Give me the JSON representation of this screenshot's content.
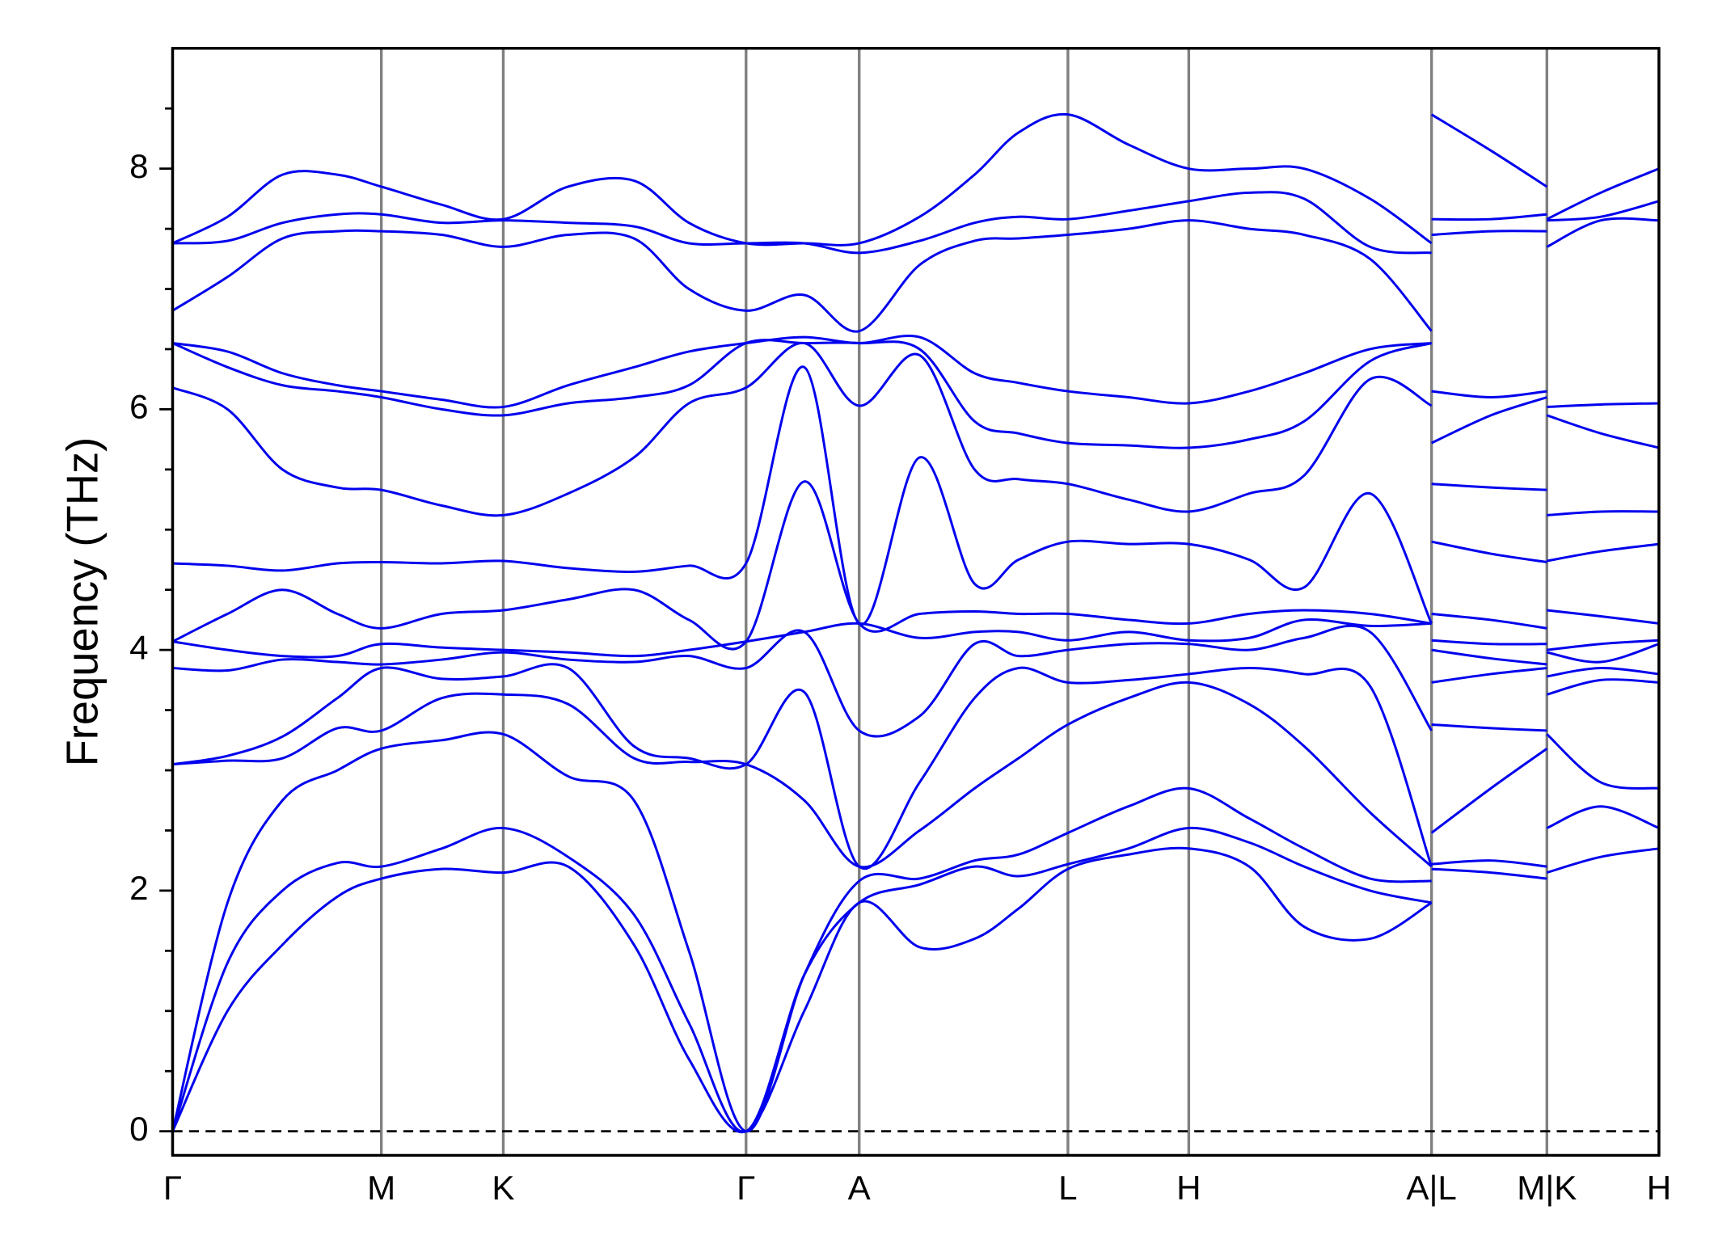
{
  "chart_data": {
    "type": "line",
    "ylabel": "Frequency (THz)",
    "color": "#0000ee",
    "ylim": [
      -0.2,
      9.0
    ],
    "yticks": [
      0,
      2,
      4,
      6,
      8
    ],
    "yticks_minor": [
      0.5,
      1,
      1.5,
      2.5,
      3,
      3.5,
      4.5,
      5,
      5.5,
      6.5,
      7,
      7.5,
      8.5
    ],
    "hline": 0,
    "xlim": [
      0,
      13.53
    ],
    "xticks": [
      {
        "value": 0,
        "label": "Γ"
      },
      {
        "value": 1.9,
        "label": "M"
      },
      {
        "value": 3.01,
        "label": "K"
      },
      {
        "value": 5.22,
        "label": "Γ"
      },
      {
        "value": 6.25,
        "label": "A"
      },
      {
        "value": 8.15,
        "label": "L"
      },
      {
        "value": 9.25,
        "label": "H"
      },
      {
        "value": 11.46,
        "label": "A|L"
      },
      {
        "value": 12.51,
        "label": "M|K"
      },
      {
        "value": 13.53,
        "label": "H"
      }
    ],
    "x": [
      0,
      0.5,
      1.0,
      1.5,
      1.9,
      2.45,
      3.01,
      3.6,
      4.2,
      4.7,
      5.22,
      5.75,
      6.25,
      6.8,
      7.3,
      7.7,
      8.15,
      8.7,
      9.25,
      9.8,
      10.3,
      10.9,
      11.46,
      11.46,
      11.46,
      12.0,
      12.51,
      12.51,
      12.51,
      13.0,
      13.53
    ],
    "series": [
      {
        "values": [
          0,
          1.0,
          1.55,
          1.95,
          2.1,
          2.18,
          2.15,
          2.2,
          1.55,
          0.6,
          0,
          1.0,
          1.9,
          1.53,
          1.6,
          1.85,
          2.18,
          2.3,
          2.35,
          2.2,
          1.7,
          1.6,
          1.9,
          null,
          2.18,
          2.15,
          2.1,
          null,
          2.15,
          2.28,
          2.35
        ]
      },
      {
        "values": [
          0,
          1.4,
          2.0,
          2.23,
          2.2,
          2.35,
          2.52,
          2.28,
          1.8,
          0.9,
          0,
          1.3,
          1.9,
          2.05,
          2.2,
          2.12,
          2.22,
          2.35,
          2.52,
          2.4,
          2.2,
          2.0,
          1.9,
          null,
          2.22,
          2.25,
          2.2,
          null,
          2.52,
          2.7,
          2.52
        ]
      },
      {
        "values": [
          0,
          1.9,
          2.75,
          3.0,
          3.18,
          3.25,
          3.3,
          2.95,
          2.75,
          1.5,
          0,
          1.3,
          2.08,
          2.1,
          2.25,
          2.3,
          2.48,
          2.7,
          2.85,
          2.6,
          2.35,
          2.1,
          2.08,
          null,
          2.48,
          2.85,
          3.18,
          null,
          3.3,
          2.9,
          2.85
        ]
      },
      {
        "values": [
          3.05,
          3.08,
          3.1,
          3.35,
          3.33,
          3.6,
          3.63,
          3.55,
          3.1,
          3.07,
          3.05,
          2.75,
          2.2,
          2.5,
          2.85,
          3.1,
          3.38,
          3.6,
          3.73,
          3.55,
          3.2,
          2.65,
          2.2,
          null,
          3.38,
          3.35,
          3.33,
          null,
          3.63,
          3.75,
          3.73
        ]
      },
      {
        "values": [
          3.05,
          3.12,
          3.28,
          3.6,
          3.85,
          3.76,
          3.78,
          3.85,
          3.2,
          3.1,
          3.05,
          3.65,
          2.2,
          2.9,
          3.6,
          3.85,
          3.73,
          3.75,
          3.8,
          3.85,
          3.8,
          3.7,
          2.2,
          null,
          3.73,
          3.8,
          3.85,
          null,
          3.78,
          3.85,
          3.8
        ]
      },
      {
        "values": [
          3.85,
          3.83,
          3.92,
          3.9,
          3.88,
          3.92,
          3.98,
          3.92,
          3.9,
          3.95,
          3.85,
          4.15,
          3.33,
          3.45,
          4.05,
          3.95,
          4.0,
          4.05,
          4.05,
          4.0,
          4.1,
          4.15,
          3.33,
          null,
          4.0,
          3.93,
          3.88,
          null,
          3.98,
          3.9,
          4.05
        ]
      },
      {
        "values": [
          4.07,
          4.0,
          3.95,
          3.95,
          4.05,
          4.02,
          4.0,
          3.98,
          3.95,
          4.0,
          4.07,
          4.15,
          4.22,
          4.1,
          4.15,
          4.15,
          4.08,
          4.15,
          4.08,
          4.1,
          4.25,
          4.2,
          4.22,
          null,
          4.08,
          4.05,
          4.05,
          null,
          4.0,
          4.05,
          4.08
        ]
      },
      {
        "values": [
          4.07,
          4.3,
          4.5,
          4.3,
          4.18,
          4.3,
          4.33,
          4.42,
          4.5,
          4.25,
          4.07,
          5.4,
          4.22,
          4.3,
          4.32,
          4.3,
          4.3,
          4.25,
          4.22,
          4.3,
          4.33,
          4.3,
          4.22,
          null,
          4.3,
          4.25,
          4.18,
          null,
          4.33,
          4.28,
          4.22
        ]
      },
      {
        "values": [
          4.72,
          4.7,
          4.66,
          4.72,
          4.73,
          4.72,
          4.74,
          4.68,
          4.65,
          4.7,
          4.72,
          6.35,
          4.22,
          5.6,
          4.55,
          4.75,
          4.9,
          4.88,
          4.88,
          4.75,
          4.52,
          5.3,
          4.22,
          null,
          4.9,
          4.8,
          4.73,
          null,
          4.74,
          4.82,
          4.88
        ]
      },
      {
        "values": [
          6.18,
          6.0,
          5.5,
          5.35,
          5.33,
          5.2,
          5.12,
          5.3,
          5.6,
          6.05,
          6.18,
          6.55,
          6.03,
          6.45,
          5.5,
          5.42,
          5.38,
          5.25,
          5.15,
          5.3,
          5.45,
          6.25,
          6.03,
          null,
          5.38,
          5.35,
          5.33,
          null,
          5.12,
          5.15,
          5.15
        ]
      },
      {
        "values": [
          6.55,
          6.35,
          6.2,
          6.15,
          6.1,
          6.0,
          5.95,
          6.05,
          6.1,
          6.2,
          6.55,
          6.55,
          6.55,
          6.5,
          5.9,
          5.8,
          5.72,
          5.7,
          5.68,
          5.75,
          5.9,
          6.4,
          6.55,
          null,
          5.72,
          5.95,
          6.1,
          null,
          5.95,
          5.8,
          5.68
        ]
      },
      {
        "values": [
          6.55,
          6.48,
          6.3,
          6.2,
          6.15,
          6.08,
          6.02,
          6.2,
          6.35,
          6.48,
          6.55,
          6.6,
          6.55,
          6.6,
          6.3,
          6.22,
          6.15,
          6.1,
          6.05,
          6.15,
          6.3,
          6.5,
          6.55,
          null,
          6.15,
          6.1,
          6.15,
          null,
          6.02,
          6.04,
          6.05
        ]
      },
      {
        "values": [
          6.82,
          7.1,
          7.42,
          7.48,
          7.48,
          7.45,
          7.35,
          7.45,
          7.42,
          7.0,
          6.82,
          6.95,
          6.65,
          7.2,
          7.4,
          7.42,
          7.45,
          7.5,
          7.57,
          7.5,
          7.45,
          7.25,
          6.65,
          null,
          7.45,
          7.48,
          7.48,
          null,
          7.35,
          7.57,
          7.57
        ]
      },
      {
        "values": [
          7.38,
          7.4,
          7.55,
          7.62,
          7.62,
          7.55,
          7.57,
          7.55,
          7.52,
          7.38,
          7.38,
          7.38,
          7.3,
          7.4,
          7.55,
          7.6,
          7.58,
          7.65,
          7.73,
          7.8,
          7.75,
          7.35,
          7.3,
          null,
          7.58,
          7.58,
          7.62,
          null,
          7.57,
          7.6,
          7.73
        ]
      },
      {
        "values": [
          7.38,
          7.6,
          7.95,
          7.95,
          7.85,
          7.7,
          7.58,
          7.85,
          7.9,
          7.55,
          7.38,
          7.38,
          7.38,
          7.6,
          7.95,
          8.3,
          8.45,
          8.2,
          8.0,
          8.0,
          8.0,
          7.75,
          7.38,
          null,
          8.45,
          8.15,
          7.85,
          null,
          7.58,
          7.8,
          8.0
        ]
      }
    ]
  }
}
